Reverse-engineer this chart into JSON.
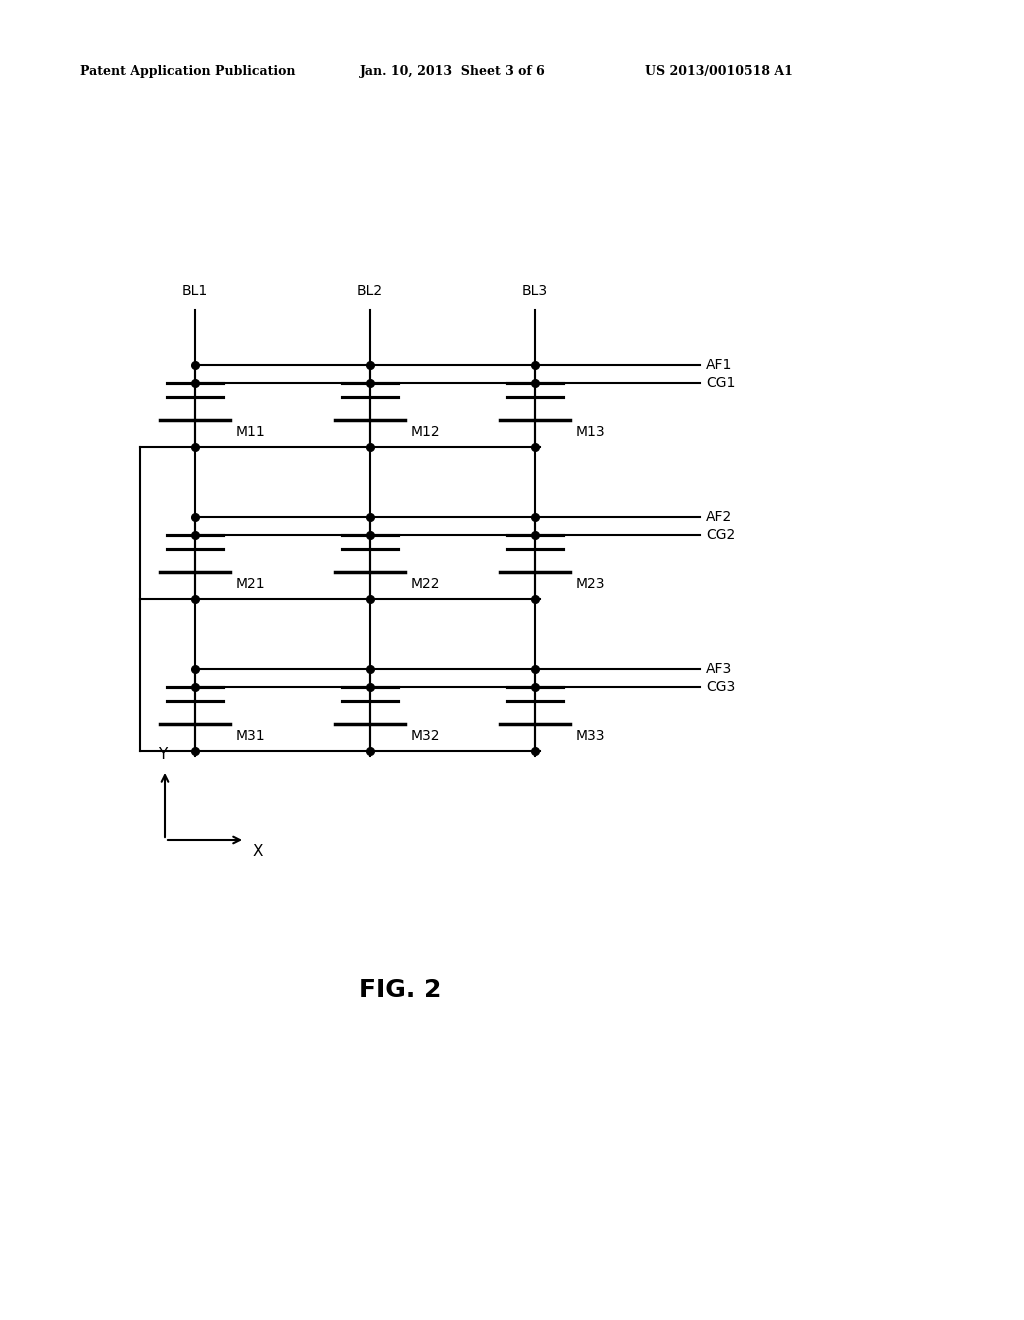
{
  "bg_color": "#ffffff",
  "line_color": "#000000",
  "header_left": "Patent Application Publication",
  "header_center": "Jan. 10, 2013  Sheet 3 of 6",
  "header_right": "US 2013/0010518 A1",
  "fig_label": "FIG. 2",
  "bl_labels": [
    "BL1",
    "BL2",
    "BL3"
  ],
  "af_labels": [
    "AF1",
    "AF2",
    "AF3"
  ],
  "cg_labels": [
    "CG1",
    "CG2",
    "CG3"
  ],
  "transistor_labels": [
    [
      "M11",
      "M12",
      "M13"
    ],
    [
      "M21",
      "M22",
      "M23"
    ],
    [
      "M31",
      "M32",
      "M33"
    ]
  ]
}
